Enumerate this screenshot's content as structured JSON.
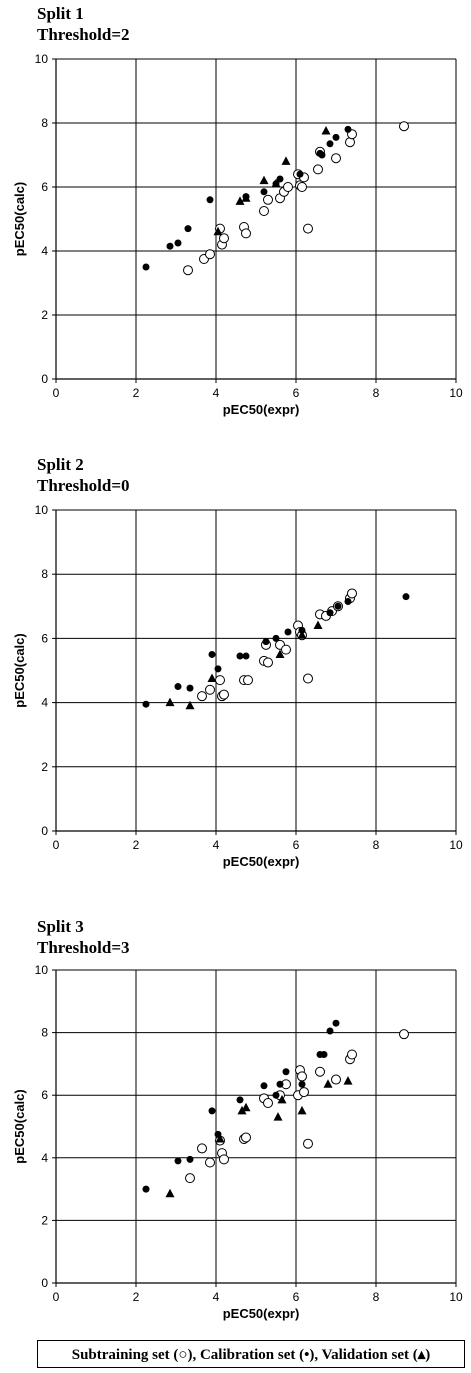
{
  "legend": {
    "text": "Subtraining set (○),  Calibration set (•),  Validation set (▴)"
  },
  "colors": {
    "axis": "#000000",
    "grid": "#000000",
    "filled": "#000000",
    "open_fill": "#ffffff"
  },
  "chart_data": [
    {
      "type": "scatter",
      "title": "Split 1",
      "subtitle": "Threshold=2",
      "xlabel": "pEC50(expr)",
      "ylabel": "pEC50(calc)",
      "xlim": [
        0,
        10
      ],
      "ylim": [
        0,
        10
      ],
      "xticks": [
        "0",
        "2",
        "4",
        "6",
        "8",
        "10"
      ],
      "yticks": [
        "0",
        "2",
        "4",
        "6",
        "8",
        "10"
      ],
      "grid": true,
      "series": [
        {
          "name": "Subtraining set",
          "marker": "open-circle",
          "x": [
            3.3,
            3.7,
            3.85,
            4.1,
            4.15,
            4.2,
            4.7,
            4.75,
            5.2,
            5.3,
            5.6,
            5.7,
            5.8,
            6.05,
            6.1,
            6.15,
            6.2,
            6.3,
            6.55,
            6.6,
            7.0,
            7.35,
            7.4,
            8.7
          ],
          "y": [
            3.4,
            3.75,
            3.9,
            4.7,
            4.2,
            4.4,
            4.75,
            4.55,
            5.25,
            5.6,
            5.65,
            5.85,
            6.0,
            6.4,
            6.05,
            6.0,
            6.3,
            4.7,
            6.55,
            7.1,
            6.9,
            7.4,
            7.65,
            7.9
          ]
        },
        {
          "name": "Calibration set",
          "marker": "filled-circle",
          "x": [
            2.25,
            2.85,
            3.05,
            3.3,
            3.85,
            4.75,
            5.2,
            5.5,
            5.6,
            6.1,
            6.6,
            6.65,
            6.85,
            7.0,
            7.3
          ],
          "y": [
            3.5,
            4.15,
            4.25,
            4.7,
            5.6,
            5.7,
            5.85,
            6.1,
            6.25,
            6.4,
            7.05,
            7.0,
            7.35,
            7.55,
            7.8
          ]
        },
        {
          "name": "Validation set",
          "marker": "filled-triangle",
          "x": [
            4.05,
            4.6,
            4.75,
            5.2,
            5.5,
            5.75,
            6.75
          ],
          "y": [
            4.6,
            5.55,
            5.65,
            6.2,
            6.1,
            6.8,
            7.75
          ]
        }
      ]
    },
    {
      "type": "scatter",
      "title": "Split 2",
      "subtitle": "Threshold=0",
      "xlabel": "pEC50(expr)",
      "ylabel": "pEC50(calc)",
      "xlim": [
        0,
        10
      ],
      "ylim": [
        0,
        10
      ],
      "xticks": [
        "0",
        "2",
        "4",
        "6",
        "8",
        "10"
      ],
      "yticks": [
        "0",
        "2",
        "4",
        "6",
        "8",
        "10"
      ],
      "grid": true,
      "series": [
        {
          "name": "Subtraining set",
          "marker": "open-circle",
          "x": [
            3.65,
            3.85,
            4.1,
            4.15,
            4.2,
            4.7,
            4.8,
            5.2,
            5.25,
            5.3,
            5.6,
            5.75,
            6.05,
            6.1,
            6.15,
            6.3,
            6.6,
            6.75,
            6.9,
            7.05,
            7.35,
            7.4
          ],
          "y": [
            4.2,
            4.4,
            4.7,
            4.2,
            4.25,
            4.7,
            4.7,
            5.3,
            5.8,
            5.25,
            5.8,
            5.65,
            6.4,
            6.2,
            6.1,
            4.75,
            6.75,
            6.7,
            6.85,
            7.0,
            7.25,
            7.4
          ],
          "note": ""
        },
        {
          "name": "Calibration set",
          "marker": "filled-circle",
          "x": [
            2.25,
            3.05,
            3.35,
            3.9,
            4.05,
            4.6,
            4.75,
            5.25,
            5.5,
            5.8,
            6.15,
            6.85,
            7.05,
            7.3,
            8.75
          ],
          "y": [
            3.95,
            4.5,
            4.45,
            5.5,
            5.05,
            5.45,
            5.45,
            5.9,
            6.0,
            6.2,
            6.25,
            6.8,
            7.0,
            7.15,
            7.3
          ]
        },
        {
          "name": "Validation set",
          "marker": "filled-triangle",
          "x": [
            2.85,
            3.35,
            3.9,
            5.6,
            6.15,
            6.55
          ],
          "y": [
            4.0,
            3.9,
            4.75,
            5.5,
            6.1,
            6.4
          ]
        }
      ]
    },
    {
      "type": "scatter",
      "title": "Split 3",
      "subtitle": "Threshold=3",
      "xlabel": "pEC50(expr)",
      "ylabel": "pEC50(calc)",
      "xlim": [
        0,
        10
      ],
      "ylim": [
        0,
        10
      ],
      "xticks": [
        "0",
        "2",
        "4",
        "6",
        "8",
        "10"
      ],
      "yticks": [
        "0",
        "2",
        "4",
        "6",
        "8",
        "10"
      ],
      "grid": true,
      "series": [
        {
          "name": "Subtraining set",
          "marker": "open-circle",
          "x": [
            3.35,
            3.65,
            3.85,
            4.1,
            4.15,
            4.2,
            4.7,
            4.75,
            5.2,
            5.3,
            5.6,
            5.75,
            6.05,
            6.1,
            6.15,
            6.2,
            6.3,
            6.6,
            7.0,
            7.35,
            7.4,
            8.7
          ],
          "y": [
            3.35,
            4.3,
            3.85,
            4.55,
            4.15,
            3.95,
            4.6,
            4.65,
            5.9,
            5.75,
            6.0,
            6.35,
            6.0,
            6.8,
            6.6,
            6.1,
            4.45,
            6.75,
            6.5,
            7.15,
            7.3,
            7.95
          ]
        },
        {
          "name": "Calibration set",
          "marker": "filled-circle",
          "x": [
            2.25,
            3.05,
            3.35,
            3.9,
            4.05,
            4.6,
            5.2,
            5.5,
            5.6,
            5.75,
            6.15,
            6.6,
            6.7,
            6.85,
            7.0
          ],
          "y": [
            3.0,
            3.9,
            3.95,
            5.5,
            4.75,
            5.85,
            6.3,
            6.0,
            6.35,
            6.75,
            6.35,
            7.3,
            7.3,
            8.05,
            8.3
          ]
        },
        {
          "name": "Validation set",
          "marker": "filled-triangle",
          "x": [
            2.85,
            4.1,
            4.65,
            4.75,
            5.55,
            5.65,
            6.15,
            6.8,
            7.3
          ],
          "y": [
            2.85,
            4.6,
            5.5,
            5.6,
            5.3,
            5.85,
            5.5,
            6.35,
            6.45
          ]
        }
      ]
    }
  ]
}
